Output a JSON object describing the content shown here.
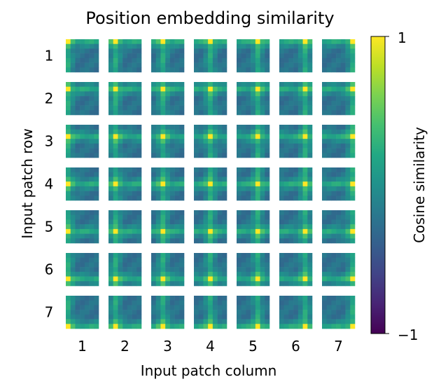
{
  "chart_data": {
    "type": "heatmap",
    "title": "Position embedding similarity",
    "xlabel": "Input patch column",
    "ylabel": "Input patch row",
    "rows": [
      "1",
      "2",
      "3",
      "4",
      "5",
      "6",
      "7"
    ],
    "columns": [
      "1",
      "2",
      "3",
      "4",
      "5",
      "6",
      "7"
    ],
    "grid_size": 7,
    "cell_size": 7,
    "description_of_values": "Each small panel (r, c) is a 7x7 map of cosine similarity between the position embedding of patch (r, c) and every other patch; the brightest cell sits at (r, c) itself.",
    "colorbar": {
      "label": "Cosine similarity",
      "min": -1,
      "max": 1,
      "tick_labels": [
        "1",
        "−1"
      ],
      "colormap": "viridis"
    },
    "grid": false
  },
  "colors": {
    "viridis": [
      "#440154",
      "#482475",
      "#414487",
      "#355f8d",
      "#2a788e",
      "#21918c",
      "#22a884",
      "#44bf70",
      "#7ad151",
      "#bddf26",
      "#fde725"
    ]
  }
}
